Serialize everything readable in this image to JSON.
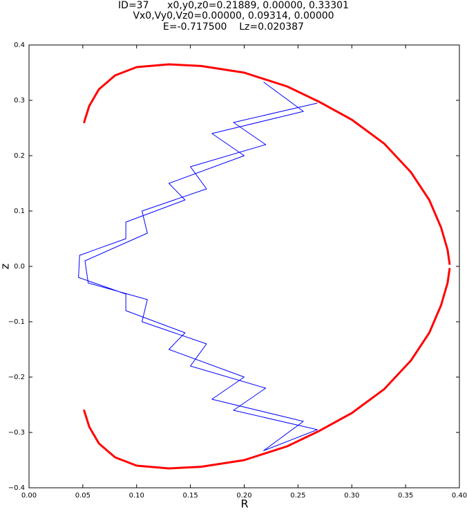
{
  "chart_data": {
    "type": "line",
    "title_lines": [
      "ID=37      x0,y0,z0=0.21889, 0.00000, 0.33301",
      "Vx0,Vy0,Vz0=0.00000, 0.09314, 0.00000",
      "E=-0.717500    Lz=0.020387"
    ],
    "x_label": "R",
    "y_label": "z",
    "xlim": [
      0,
      0.4
    ],
    "ylim": [
      -0.4,
      0.4
    ],
    "xticks": [
      {
        "value": 0,
        "label": "0.00"
      },
      {
        "value": 0.05,
        "label": "0.05"
      },
      {
        "value": 0.1,
        "label": "0.10"
      },
      {
        "value": 0.15,
        "label": "0.15"
      },
      {
        "value": 0.2,
        "label": "0.20"
      },
      {
        "value": 0.25,
        "label": "0.25"
      },
      {
        "value": 0.3,
        "label": "0.30"
      },
      {
        "value": 0.35,
        "label": "0.35"
      },
      {
        "value": 0.4,
        "label": "0.40"
      }
    ],
    "yticks": [
      {
        "value": -0.4,
        "label": "−0.4"
      },
      {
        "value": -0.3,
        "label": "−0.3"
      },
      {
        "value": -0.2,
        "label": "−0.2"
      },
      {
        "value": -0.1,
        "label": "−0.1"
      },
      {
        "value": 0,
        "label": "0.0"
      },
      {
        "value": 0.1,
        "label": "0.1"
      },
      {
        "value": 0.2,
        "label": "0.2"
      },
      {
        "value": 0.3,
        "label": "0.3"
      },
      {
        "value": 0.4,
        "label": "0.4"
      }
    ],
    "series": [
      {
        "color": "#ff0000",
        "x": [
          0.051,
          0.056,
          0.065,
          0.08,
          0.1,
          0.13,
          0.16,
          0.2,
          0.24,
          0.27,
          0.3,
          0.33,
          0.355,
          0.372,
          0.383,
          0.389,
          0.391,
          0.391,
          0.391,
          0.389,
          0.383,
          0.372,
          0.355,
          0.33,
          0.3,
          0.27,
          0.24,
          0.2,
          0.16,
          0.13,
          0.1,
          0.08,
          0.065,
          0.056,
          0.051
        ],
        "values": [
          0.259,
          0.29,
          0.32,
          0.345,
          0.36,
          0.365,
          0.362,
          0.35,
          0.325,
          0.297,
          0.265,
          0.222,
          0.17,
          0.12,
          0.07,
          0.03,
          0.003,
          null,
          -0.003,
          -0.03,
          -0.07,
          -0.12,
          -0.17,
          -0.222,
          -0.265,
          -0.297,
          -0.325,
          -0.35,
          -0.362,
          -0.365,
          -0.36,
          -0.345,
          -0.32,
          -0.29,
          -0.259
        ]
      },
      {
        "color": "#0000ff",
        "x": [
          0.218,
          0.255,
          0.17,
          0.2,
          0.13,
          0.145,
          0.09,
          0.09,
          0.047,
          0.046,
          0.09,
          0.09,
          0.145,
          0.13,
          0.2,
          0.17,
          0.255,
          0.218,
          0.268,
          0.19,
          0.22,
          0.15,
          0.165,
          0.105,
          0.11,
          0.055,
          0.052,
          0.11,
          0.105,
          0.165,
          0.15,
          0.22,
          0.19,
          0.268
        ],
        "values": [
          0.333,
          0.28,
          0.24,
          0.2,
          0.15,
          0.12,
          0.08,
          0.05,
          0.02,
          -0.02,
          -0.05,
          -0.08,
          -0.12,
          -0.15,
          -0.2,
          -0.24,
          -0.28,
          -0.333,
          -0.295,
          -0.26,
          -0.22,
          -0.18,
          -0.14,
          -0.1,
          -0.06,
          -0.03,
          0.01,
          0.06,
          0.1,
          0.14,
          0.18,
          0.22,
          0.26,
          0.295
        ]
      }
    ]
  }
}
